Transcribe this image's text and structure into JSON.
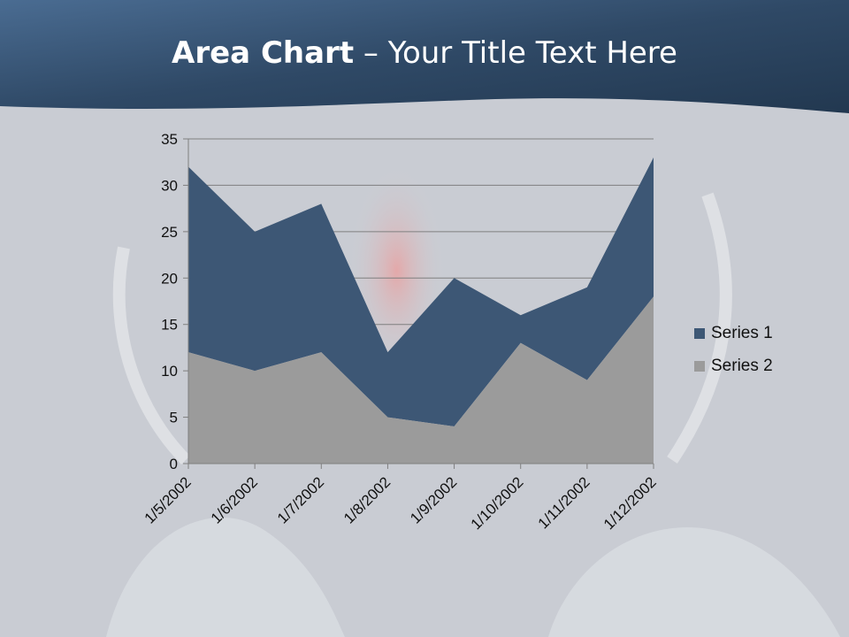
{
  "slide": {
    "title_bold": "Area Chart",
    "title_rest": " – Your Title Text Here"
  },
  "colors": {
    "header": "#3a5775",
    "series1": "#3d5775",
    "series2": "#9b9b9b",
    "background": "#cdd0d6"
  },
  "chart_data": {
    "type": "area",
    "stacked": true,
    "categories": [
      "1/5/2002",
      "1/6/2002",
      "1/7/2002",
      "1/8/2002",
      "1/9/2002",
      "1/10/2002",
      "1/11/2002",
      "1/12/2002"
    ],
    "series": [
      {
        "name": "Series 1",
        "values": [
          20,
          15,
          16,
          7,
          16,
          3,
          10,
          15
        ]
      },
      {
        "name": "Series 2",
        "values": [
          12,
          10,
          12,
          5,
          4,
          13,
          9,
          18
        ]
      }
    ],
    "ylim": [
      0,
      35
    ],
    "yticks": [
      0,
      5,
      10,
      15,
      20,
      25,
      30,
      35
    ],
    "grid": true,
    "legend_position": "right"
  }
}
